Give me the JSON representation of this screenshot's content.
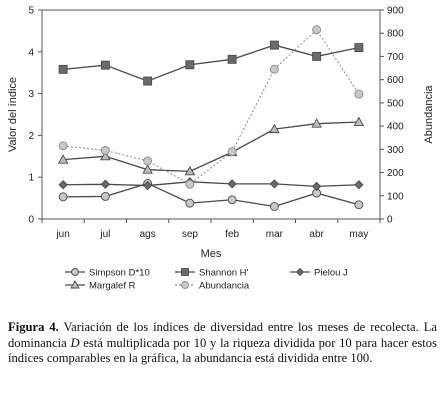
{
  "chart_data": {
    "type": "line",
    "categories": [
      "jun",
      "jul",
      "ags",
      "sep",
      "feb",
      "mar",
      "abr",
      "may"
    ],
    "xlabel": "Mes",
    "ylabel_left": "Valor del índice",
    "ylabel_right": "Abundancia",
    "ylim_left": [
      0,
      5
    ],
    "yticks_left": [
      "0",
      "1",
      "2",
      "3",
      "4",
      "5"
    ],
    "ylim_right": [
      0,
      900
    ],
    "yticks_right": [
      "0",
      "100",
      "200",
      "300",
      "400",
      "500",
      "600",
      "700",
      "800",
      "900"
    ],
    "grid": false,
    "legend_position": "bottom",
    "series": [
      {
        "name": "Simpson D*10",
        "axis": "left",
        "marker": "circle",
        "color": "#4a4a4a",
        "fill": "#c8c8c8",
        "values": [
          0.53,
          0.54,
          0.85,
          0.38,
          0.46,
          0.3,
          0.62,
          0.34
        ]
      },
      {
        "name": "Shannon H'",
        "axis": "left",
        "marker": "square",
        "color": "#4a4a4a",
        "fill": "#6a6a6a",
        "values": [
          3.58,
          3.68,
          3.3,
          3.69,
          3.82,
          4.16,
          3.89,
          4.1
        ]
      },
      {
        "name": "Pielou J",
        "axis": "left",
        "marker": "diamond",
        "color": "#4a4a4a",
        "fill": "#6a6a6a",
        "values": [
          0.82,
          0.83,
          0.8,
          0.89,
          0.84,
          0.84,
          0.78,
          0.82
        ]
      },
      {
        "name": "Margalef R",
        "axis": "left",
        "marker": "triangle",
        "color": "#4a4a4a",
        "fill": "#bdbdbd",
        "values": [
          1.42,
          1.5,
          1.18,
          1.14,
          1.6,
          2.15,
          2.28,
          2.32
        ]
      },
      {
        "name": "Abundancia",
        "axis": "right",
        "marker": "circle",
        "dashed": true,
        "color": "#8a8a8a",
        "fill": "#c8c8c8",
        "values": [
          315,
          295,
          250,
          150,
          290,
          645,
          815,
          538
        ]
      }
    ]
  },
  "caption": {
    "label": "Figura 4.",
    "text_1": " Variación de los índices de diversidad entre los meses de recolecta. La dominancia ",
    "symbol": "D",
    "text_2": " está multiplicada por 10 y la riqueza dividida por 10 para hacer estos índices comparables en la gráfica, la abundancia está dividida entre 100."
  }
}
